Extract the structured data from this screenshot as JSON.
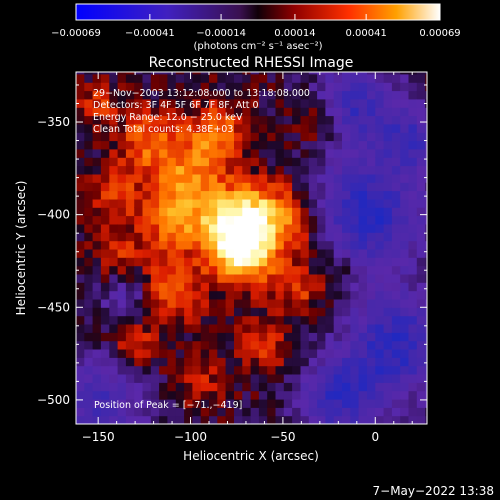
{
  "chart_data": {
    "type": "heatmap",
    "title": "Reconstructed RHESSI Image",
    "xlabel": "Heliocentric X (arcsec)",
    "ylabel": "Heliocentric Y (arcsec)",
    "xlim": [
      -162,
      28
    ],
    "ylim": [
      -513,
      -323
    ],
    "x_ticks": [
      -150,
      -100,
      -50,
      0
    ],
    "y_ticks": [
      -500,
      -450,
      -400,
      -350
    ],
    "x_tick_labels": [
      "−150",
      "−100",
      "−50",
      "0"
    ],
    "y_tick_labels": [
      "−500",
      "−450",
      "−400",
      "−350"
    ],
    "colorbar": {
      "range": [
        -0.00069,
        0.00069
      ],
      "ticks": [
        -0.00069,
        -0.00041,
        -0.00014,
        0.00014,
        0.00041,
        0.00069
      ],
      "tick_labels": [
        "−0.00069",
        "−0.00041",
        "−0.00014",
        "0.00014",
        "0.00041",
        "0.00069"
      ],
      "unit_label": "(photons cm⁻² s⁻¹ asec⁻²)"
    },
    "annotations": [
      "29−Nov−2003 13:12:08.000 to 13:18:08.000",
      "Detectors: 3F 4F 5F 6F 7F 8F, Att 0",
      "Energy Range: 12.0 − 25.0 keV",
      "Clean     Total counts: 4.38E+03"
    ],
    "peak_label": "Position of Peak = [−71.,−419]",
    "peak": [
      -71,
      -419
    ],
    "timestamp": "7−May−2022 13:38"
  }
}
